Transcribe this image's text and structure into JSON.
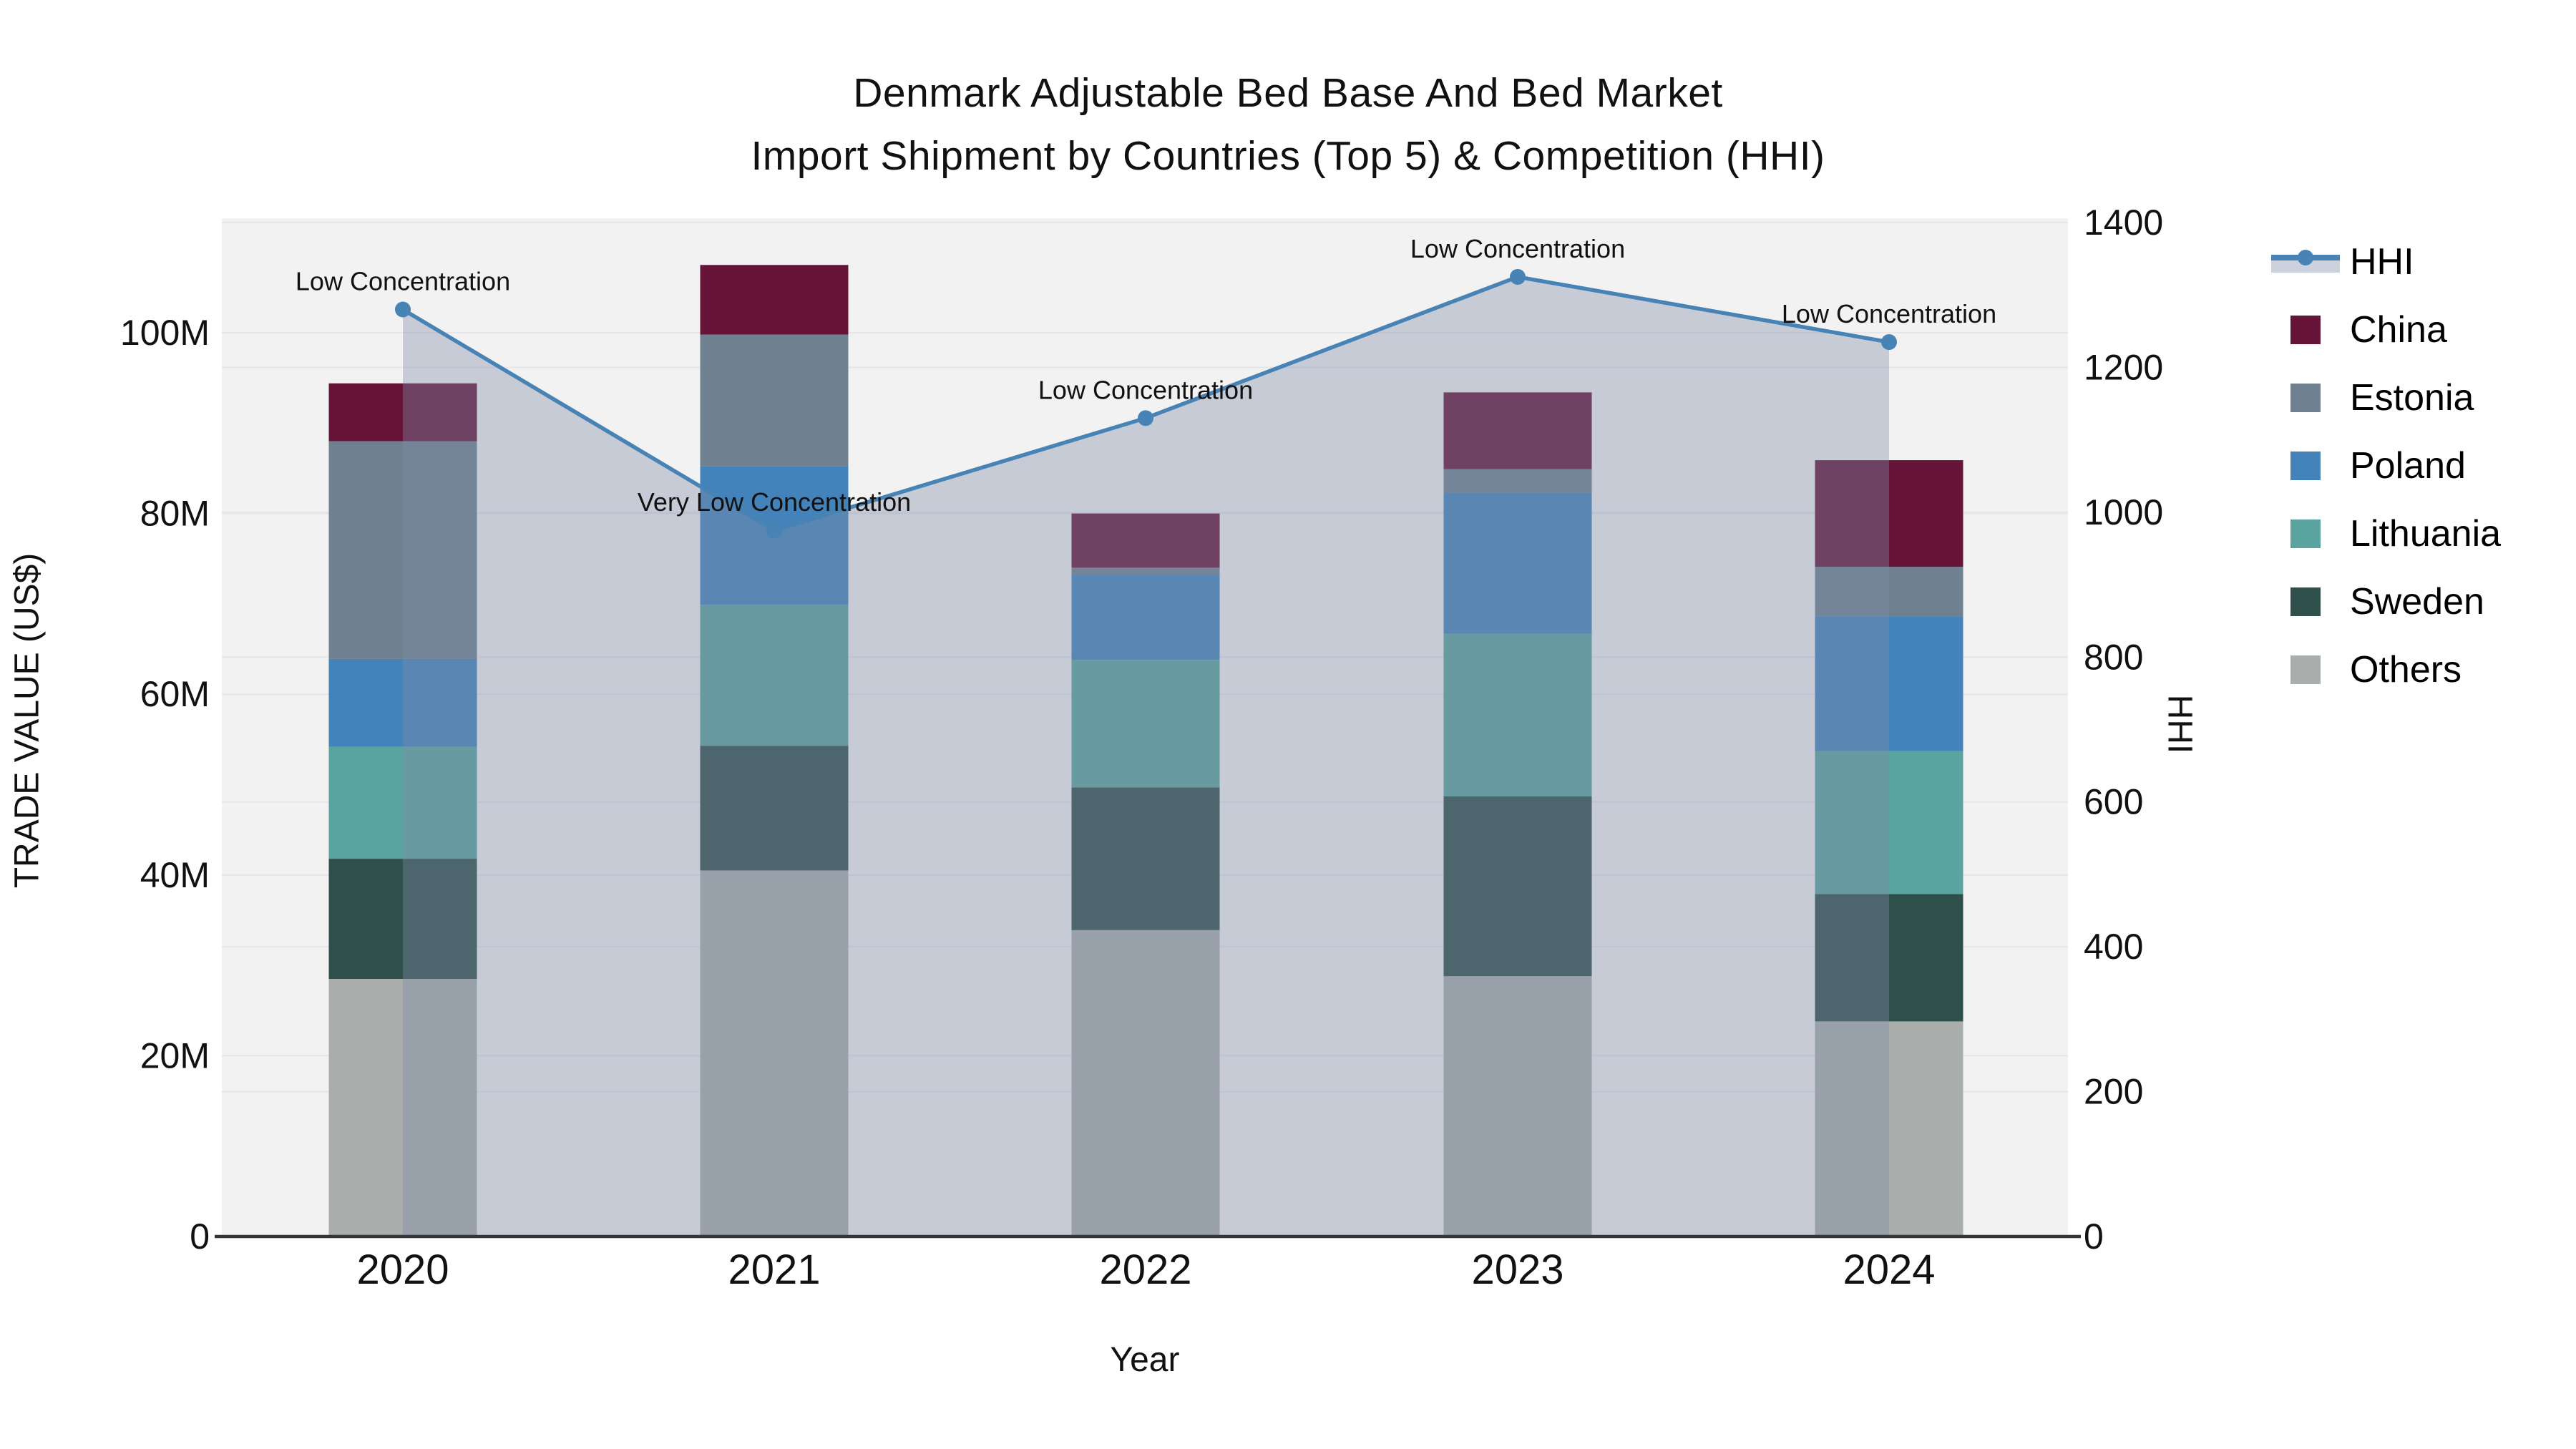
{
  "title": {
    "line1": "Denmark Adjustable Bed Base And Bed Market",
    "line2": "Import Shipment by Countries (Top 5) & Competition (HHI)"
  },
  "axes": {
    "x": {
      "title": "Year",
      "tick_labels": [
        "2020",
        "2021",
        "2022",
        "2023",
        "2024"
      ]
    },
    "y_left": {
      "title": "TRADE VALUE (US$)",
      "tick_labels": [
        "0",
        "20M",
        "40M",
        "60M",
        "80M",
        "100M"
      ],
      "tick_values": [
        0,
        20,
        40,
        60,
        80,
        100
      ]
    },
    "y_right": {
      "title": "HHI",
      "tick_labels": [
        "0",
        "200",
        "400",
        "600",
        "800",
        "1000",
        "1200",
        "1400"
      ],
      "tick_values": [
        0,
        200,
        400,
        600,
        800,
        1000,
        1200,
        1400
      ]
    }
  },
  "legend": {
    "items": [
      {
        "label": "HHI",
        "type": "line",
        "color": "#4783b4",
        "band_color": "#ccd2dd"
      },
      {
        "label": "China",
        "type": "swatch",
        "color": "#661539"
      },
      {
        "label": "Estonia",
        "type": "swatch",
        "color": "#6f8090"
      },
      {
        "label": "Poland",
        "type": "swatch",
        "color": "#4383b9"
      },
      {
        "label": "Lithuania",
        "type": "swatch",
        "color": "#5ba39f"
      },
      {
        "label": "Sweden",
        "type": "swatch",
        "color": "#2f4f4b"
      },
      {
        "label": "Others",
        "type": "swatch",
        "color": "#a9adac"
      }
    ]
  },
  "chart_data": {
    "type": "combo-stacked-bar-line",
    "categories": [
      "2020",
      "2021",
      "2022",
      "2023",
      "2024"
    ],
    "bar_value_unit": "Million US$",
    "stack_order": "bottom-to-top",
    "bar_series": [
      {
        "name": "Others",
        "color": "#a9adac",
        "values": [
          28.5,
          40.5,
          33.9,
          28.8,
          23.8
        ]
      },
      {
        "name": "Sweden",
        "color": "#2f4f4b",
        "values": [
          13.3,
          13.8,
          15.8,
          19.9,
          14.1
        ]
      },
      {
        "name": "Lithuania",
        "color": "#5ba39f",
        "values": [
          12.4,
          15.6,
          14.1,
          18.0,
          15.8
        ]
      },
      {
        "name": "Poland",
        "color": "#4383b9",
        "values": [
          9.7,
          15.3,
          9.4,
          15.6,
          14.9
        ]
      },
      {
        "name": "Estonia",
        "color": "#6f8090",
        "values": [
          24.1,
          14.6,
          0.8,
          2.6,
          5.5
        ]
      },
      {
        "name": "China",
        "color": "#661539",
        "values": [
          6.4,
          7.7,
          6.0,
          8.5,
          11.8
        ]
      }
    ],
    "bar_totals": [
      94.4,
      107.5,
      80.0,
      93.4,
      85.9
    ],
    "line_series": {
      "name": "HHI",
      "values": [
        1280,
        975,
        1130,
        1325,
        1235
      ],
      "color": "#4783b4",
      "marker": "circle",
      "area_fill": "rgba(125,140,168,0.38)"
    },
    "annotations": [
      {
        "category": "2020",
        "text": "Low Concentration"
      },
      {
        "category": "2021",
        "text": "Very Low Concentration"
      },
      {
        "category": "2022",
        "text": "Low Concentration"
      },
      {
        "category": "2023",
        "text": "Low Concentration"
      },
      {
        "category": "2024",
        "text": "Low Concentration"
      }
    ],
    "ylim_left": [
      0,
      113
    ],
    "ylim_right": [
      0,
      1400
    ],
    "legend_position": "right",
    "grid": true
  }
}
